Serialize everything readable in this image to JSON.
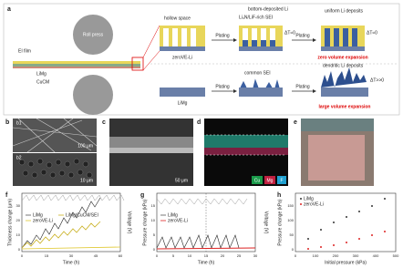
{
  "panel_a": {
    "label": "a",
    "roll_press": "Roll press",
    "ei_film": "EI film",
    "limg": "LiMg",
    "cucm": "CuCM",
    "hollow_space": "hollow space",
    "zerove": "zeroVE-Li",
    "plating_1": "Plating",
    "bottom_li": "bottom-deposited Li",
    "sei_rich": "Li₃N/LiF-rich SEI",
    "dt_1": "ΔT≈0",
    "plating_2": "Plating",
    "uniform": "uniform Li deposits",
    "dt_2": "ΔT≈0",
    "zero_exp": "zero volume expansion",
    "limg_2": "LiMg",
    "plating_3": "Plating",
    "common_sei": "common SEI",
    "plating_4": "Plating",
    "dendritic": "dendritic Li deposits",
    "dt_3": "ΔT>>0",
    "large_exp": "large volume expansion"
  },
  "panel_b": {
    "label": "b",
    "b1": "b1",
    "scale_1": "100 μm",
    "b2": "b2",
    "scale_2": "10 μm"
  },
  "panel_c": {
    "label": "c",
    "scale": "50 μm"
  },
  "panel_d": {
    "label": "d",
    "cu": "Cu",
    "mg": "Mg",
    "f": "F"
  },
  "panel_e": {
    "label": "e"
  },
  "panel_f": {
    "label": "f",
    "ylabel": "Thickness change (μm)",
    "y2label": "Voltage (V)",
    "xlabel": "Time (h)",
    "legend": [
      "LiMg",
      "LiMg/CuCM/SEI",
      "zeroVE-Li"
    ],
    "xticks": [
      "0",
      "15",
      "30",
      "45",
      "60"
    ],
    "yticks": [
      "0",
      "10",
      "20",
      "30"
    ]
  },
  "panel_g": {
    "label": "g",
    "ylabel": "Pressure change (kPa)",
    "y2label": "Voltage (V)",
    "xlabel": "Time (h)",
    "legend": [
      "LiMg",
      "zeroVE-Li"
    ],
    "xticks": [
      "0",
      "5",
      "10",
      "15",
      "20",
      "25",
      "30"
    ],
    "yticks": [
      "0",
      "5",
      "10",
      "15"
    ]
  },
  "panel_h": {
    "label": "h",
    "ylabel": "Pressure change (kPa)",
    "xlabel": "Initial pressure (kPa)",
    "legend": [
      "LiMg",
      "zeroVE-Li"
    ],
    "xticks": [
      "0",
      "100",
      "200",
      "300",
      "400",
      "500"
    ],
    "yticks": [
      "0",
      "50",
      "100",
      "150"
    ]
  }
}
